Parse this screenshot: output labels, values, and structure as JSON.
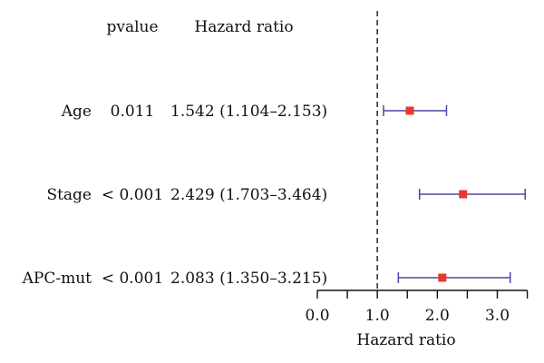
{
  "chart_data": {
    "type": "forest",
    "columns": {
      "pvalue": "pvalue",
      "hazard_ratio": "Hazard ratio"
    },
    "rows": [
      {
        "variable": "Age",
        "pvalue": "0.011",
        "hr_text": "1.542 (1.104–2.153)",
        "hr": 1.542,
        "ci_low": 1.104,
        "ci_high": 2.153
      },
      {
        "variable": "Stage",
        "pvalue": "< 0.001",
        "hr_text": "2.429 (1.703–3.464)",
        "hr": 2.429,
        "ci_low": 1.703,
        "ci_high": 3.464
      },
      {
        "variable": "APC-mut",
        "pvalue": "< 0.001",
        "hr_text": "2.083 (1.350–3.215)",
        "hr": 2.083,
        "ci_low": 1.35,
        "ci_high": 3.215
      }
    ],
    "xaxis": {
      "label": "Hazard ratio",
      "xlim": [
        0,
        3.5
      ],
      "major_ticks": [
        0,
        1,
        2,
        3
      ],
      "minor_ticks": [
        0.5,
        1.5,
        2.5,
        3.5
      ],
      "tick_labels": [
        "0.0",
        "1.0",
        "2.0",
        "3.0"
      ]
    },
    "reference_line": 1,
    "colors": {
      "point": "#e8392b",
      "ci": "#4848a8",
      "reference": "#333333",
      "axis": "#111111",
      "text": "#111111"
    }
  }
}
